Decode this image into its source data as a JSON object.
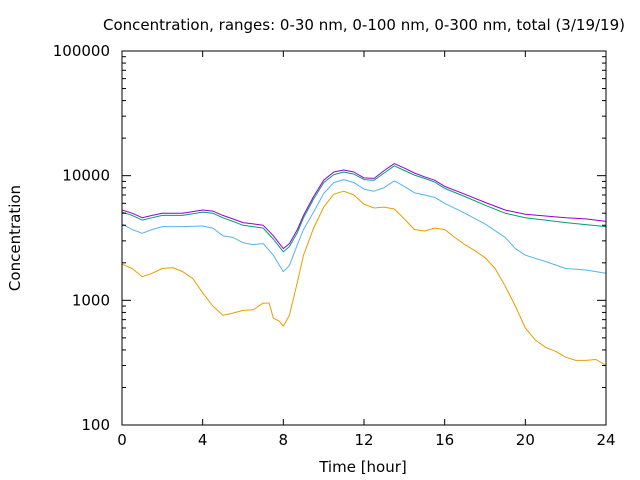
{
  "chart_data": {
    "type": "line",
    "title": "Concentration, ranges: 0-30 nm, 0-100 nm, 0-300 nm, total (3/19/19)",
    "xlabel": "Time [hour]",
    "ylabel": "Concentration",
    "xlim": [
      0,
      24
    ],
    "ylim": [
      100,
      100000
    ],
    "yscale": "log",
    "xticks": [
      0,
      4,
      8,
      12,
      16,
      20,
      24
    ],
    "xtick_labels": [
      "0",
      "4",
      "8",
      "12",
      "16",
      "20",
      "24"
    ],
    "yticks": [
      100,
      1000,
      10000,
      100000
    ],
    "ytick_labels": [
      "100",
      "1000",
      "10000",
      "100000"
    ],
    "grid": false,
    "series": [
      {
        "color": "#e69f00",
        "points": [
          [
            0,
            1950
          ],
          [
            0.5,
            1800
          ],
          [
            1,
            1550
          ],
          [
            1.5,
            1650
          ],
          [
            2,
            1800
          ],
          [
            2.5,
            1830
          ],
          [
            3,
            1700
          ],
          [
            3.5,
            1500
          ],
          [
            4,
            1150
          ],
          [
            4.5,
            900
          ],
          [
            5,
            760
          ],
          [
            5.5,
            790
          ],
          [
            6,
            830
          ],
          [
            6.5,
            840
          ],
          [
            7,
            950
          ],
          [
            7.3,
            950
          ],
          [
            7.5,
            720
          ],
          [
            7.8,
            680
          ],
          [
            8,
            620
          ],
          [
            8.3,
            760
          ],
          [
            8.7,
            1400
          ],
          [
            9,
            2300
          ],
          [
            9.5,
            3800
          ],
          [
            10,
            5600
          ],
          [
            10.5,
            7100
          ],
          [
            11,
            7500
          ],
          [
            11.5,
            7000
          ],
          [
            12,
            5900
          ],
          [
            12.5,
            5500
          ],
          [
            13,
            5600
          ],
          [
            13.5,
            5400
          ],
          [
            14,
            4500
          ],
          [
            14.5,
            3700
          ],
          [
            15,
            3600
          ],
          [
            15.5,
            3800
          ],
          [
            16,
            3700
          ],
          [
            16.5,
            3200
          ],
          [
            17,
            2800
          ],
          [
            17.5,
            2500
          ],
          [
            18,
            2200
          ],
          [
            18.5,
            1800
          ],
          [
            19,
            1300
          ],
          [
            19.5,
            900
          ],
          [
            20,
            600
          ],
          [
            20.5,
            480
          ],
          [
            21,
            420
          ],
          [
            21.5,
            390
          ],
          [
            22,
            350
          ],
          [
            22.5,
            330
          ],
          [
            23,
            330
          ],
          [
            23.5,
            335
          ],
          [
            24,
            300
          ]
        ]
      },
      {
        "color": "#56b4e9",
        "points": [
          [
            0,
            4100
          ],
          [
            0.5,
            3700
          ],
          [
            1,
            3450
          ],
          [
            1.5,
            3700
          ],
          [
            2,
            3900
          ],
          [
            3,
            3900
          ],
          [
            4,
            3950
          ],
          [
            4.5,
            3800
          ],
          [
            5,
            3300
          ],
          [
            5.5,
            3200
          ],
          [
            6,
            2900
          ],
          [
            6.5,
            2800
          ],
          [
            7,
            2850
          ],
          [
            7.5,
            2300
          ],
          [
            8,
            1700
          ],
          [
            8.3,
            1900
          ],
          [
            8.7,
            2800
          ],
          [
            9,
            3700
          ],
          [
            9.5,
            5100
          ],
          [
            10,
            7200
          ],
          [
            10.5,
            8800
          ],
          [
            11,
            9300
          ],
          [
            11.5,
            8800
          ],
          [
            12,
            7800
          ],
          [
            12.5,
            7500
          ],
          [
            13,
            8000
          ],
          [
            13.5,
            9100
          ],
          [
            14,
            8200
          ],
          [
            14.5,
            7300
          ],
          [
            15,
            7000
          ],
          [
            15.5,
            6700
          ],
          [
            16,
            6000
          ],
          [
            17,
            5000
          ],
          [
            18,
            4100
          ],
          [
            19,
            3200
          ],
          [
            19.5,
            2600
          ],
          [
            20,
            2300
          ],
          [
            21,
            2050
          ],
          [
            22,
            1800
          ],
          [
            23,
            1750
          ],
          [
            24,
            1650
          ]
        ]
      },
      {
        "color": "#009e73",
        "points": [
          [
            0,
            5100
          ],
          [
            0.5,
            4800
          ],
          [
            1,
            4400
          ],
          [
            1.5,
            4600
          ],
          [
            2,
            4800
          ],
          [
            3,
            4800
          ],
          [
            4,
            5100
          ],
          [
            4.5,
            5000
          ],
          [
            5,
            4600
          ],
          [
            5.5,
            4300
          ],
          [
            6,
            4000
          ],
          [
            6.5,
            3900
          ],
          [
            7,
            3800
          ],
          [
            7.5,
            3100
          ],
          [
            8,
            2450
          ],
          [
            8.3,
            2700
          ],
          [
            8.7,
            3500
          ],
          [
            9,
            4600
          ],
          [
            9.5,
            6500
          ],
          [
            10,
            8800
          ],
          [
            10.5,
            10200
          ],
          [
            11,
            10700
          ],
          [
            11.5,
            10300
          ],
          [
            12,
            9300
          ],
          [
            12.5,
            9200
          ],
          [
            13,
            10500
          ],
          [
            13.5,
            12000
          ],
          [
            14,
            11000
          ],
          [
            14.5,
            10100
          ],
          [
            15,
            9500
          ],
          [
            15.5,
            8900
          ],
          [
            16,
            7900
          ],
          [
            17,
            6800
          ],
          [
            18,
            5800
          ],
          [
            19,
            5000
          ],
          [
            20,
            4600
          ],
          [
            21,
            4400
          ],
          [
            22,
            4200
          ],
          [
            23,
            4050
          ],
          [
            24,
            3900
          ]
        ]
      },
      {
        "color": "#9400d3",
        "points": [
          [
            0,
            5300
          ],
          [
            0.5,
            5000
          ],
          [
            1,
            4600
          ],
          [
            1.5,
            4800
          ],
          [
            2,
            5000
          ],
          [
            3,
            5000
          ],
          [
            4,
            5300
          ],
          [
            4.5,
            5200
          ],
          [
            5,
            4800
          ],
          [
            5.5,
            4500
          ],
          [
            6,
            4200
          ],
          [
            6.5,
            4100
          ],
          [
            7,
            4000
          ],
          [
            7.5,
            3300
          ],
          [
            8,
            2600
          ],
          [
            8.3,
            2850
          ],
          [
            8.7,
            3700
          ],
          [
            9,
            4800
          ],
          [
            9.5,
            6800
          ],
          [
            10,
            9200
          ],
          [
            10.5,
            10700
          ],
          [
            11,
            11100
          ],
          [
            11.5,
            10700
          ],
          [
            12,
            9600
          ],
          [
            12.5,
            9500
          ],
          [
            13,
            11000
          ],
          [
            13.5,
            12500
          ],
          [
            14,
            11500
          ],
          [
            14.5,
            10500
          ],
          [
            15,
            9800
          ],
          [
            15.5,
            9200
          ],
          [
            16,
            8200
          ],
          [
            17,
            7100
          ],
          [
            18,
            6100
          ],
          [
            19,
            5300
          ],
          [
            20,
            4900
          ],
          [
            21,
            4750
          ],
          [
            22,
            4600
          ],
          [
            23,
            4500
          ],
          [
            24,
            4300
          ]
        ]
      }
    ]
  }
}
